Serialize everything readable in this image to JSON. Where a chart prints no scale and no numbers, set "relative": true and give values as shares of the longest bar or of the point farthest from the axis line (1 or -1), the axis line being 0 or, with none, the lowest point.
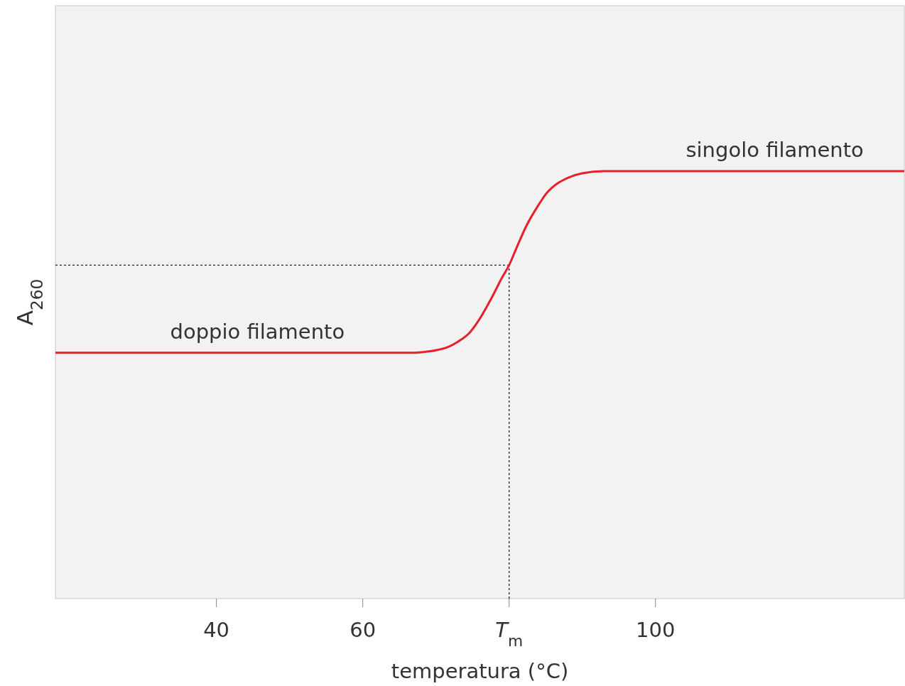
{
  "chart_data": {
    "type": "line",
    "relative": true,
    "xlabel": "temperatura (°C)",
    "ylabel": "A$_{260}$",
    "xlim": [
      18,
      134
    ],
    "xticks": [
      40,
      60,
      {
        "value": 80,
        "label": "T$_{m}$"
      },
      100
    ],
    "x": [
      18,
      35,
      45,
      55,
      62,
      66,
      68.3,
      70,
      71.7,
      73,
      74.6,
      76,
      77.5,
      79,
      80,
      81,
      82.3,
      83.8,
      85.2,
      86.5,
      88.1,
      90,
      93,
      100,
      115,
      134
    ],
    "series": [
      {
        "color": "#e8202e",
        "values": [
          0.575,
          0.575,
          0.575,
          0.575,
          0.575,
          0.575,
          0.577,
          0.581,
          0.589,
          0.601,
          0.622,
          0.655,
          0.7,
          0.75,
          0.78,
          0.82,
          0.87,
          0.915,
          0.95,
          0.97,
          0.985,
          0.995,
          1,
          1,
          1,
          1
        ]
      }
    ],
    "ref_lines": [
      {
        "axis": "x",
        "value": 80,
        "line_style": "dotted",
        "color": "#222222"
      },
      {
        "axis": "y",
        "value": 0.78,
        "line_style": "dotted",
        "color": "#222222"
      }
    ],
    "annotations": [
      {
        "text": "doppio filamento",
        "x": 45.6,
        "y": 0.575
      },
      {
        "text": "singolo filamento",
        "x": 116.3,
        "y": 1
      }
    ],
    "grid": false,
    "marker": "none",
    "line_style": "solid"
  }
}
